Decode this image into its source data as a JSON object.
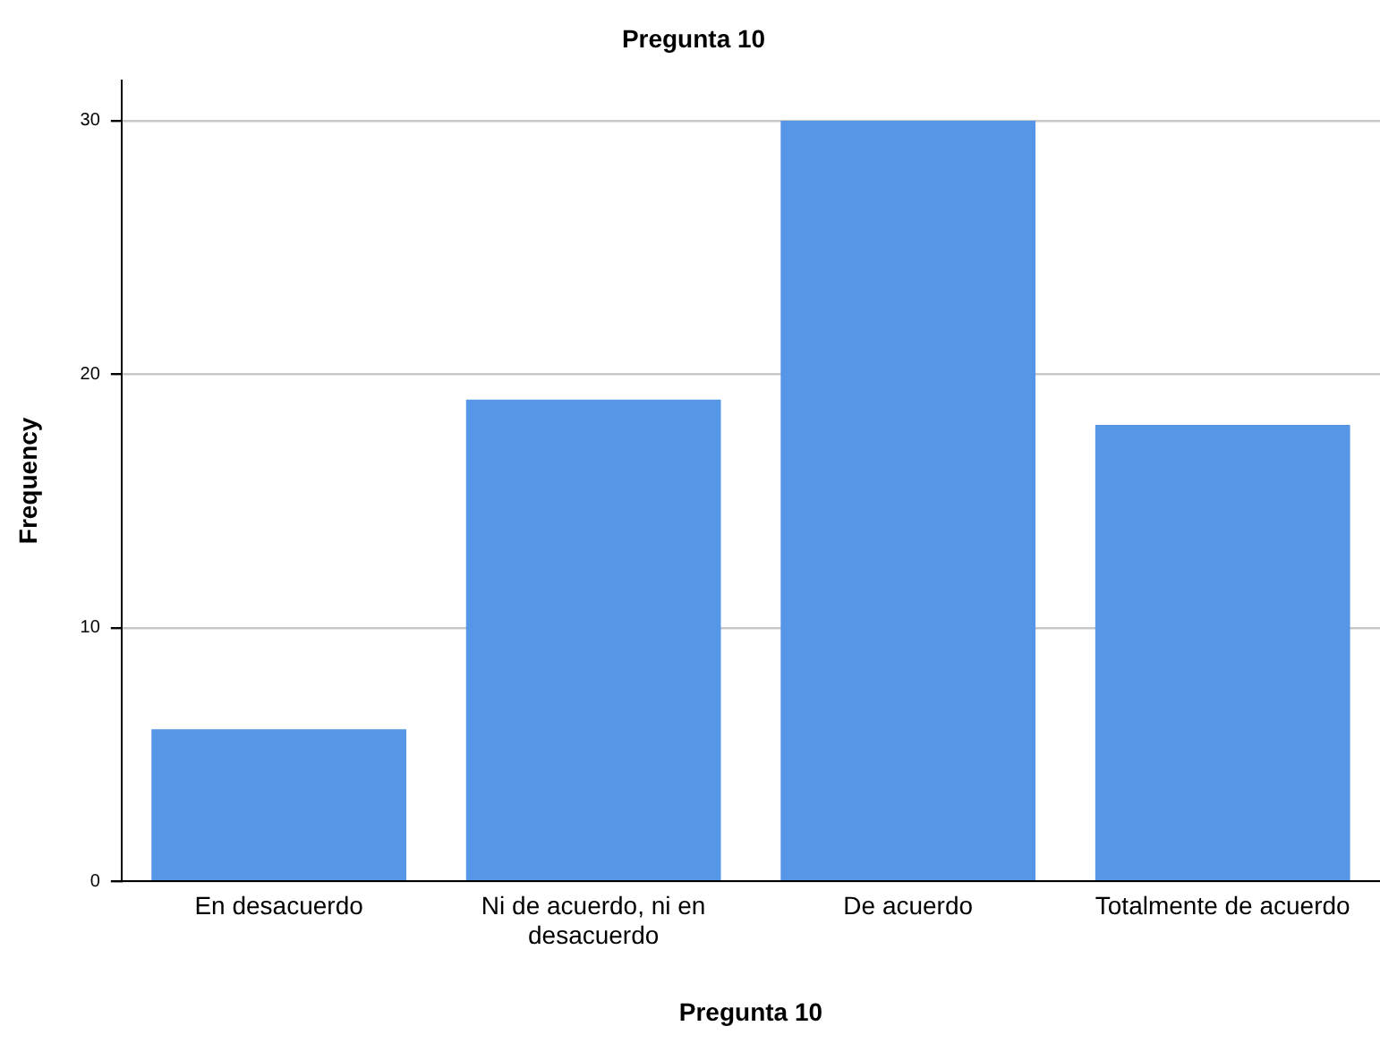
{
  "chart_data": {
    "type": "bar",
    "title": "Pregunta 10",
    "xlabel": "Pregunta 10",
    "ylabel": "Frequency",
    "categories": [
      "En desacuerdo",
      "Ni de acuerdo, ni en desacuerdo",
      "De acuerdo",
      "Totalmente de acuerdo"
    ],
    "values": [
      6,
      19,
      30,
      18
    ],
    "color": "#5596e6",
    "ylim": [
      0,
      31.6
    ],
    "yticks": [
      0,
      10,
      20,
      30
    ],
    "grid": "y",
    "legend": false
  }
}
